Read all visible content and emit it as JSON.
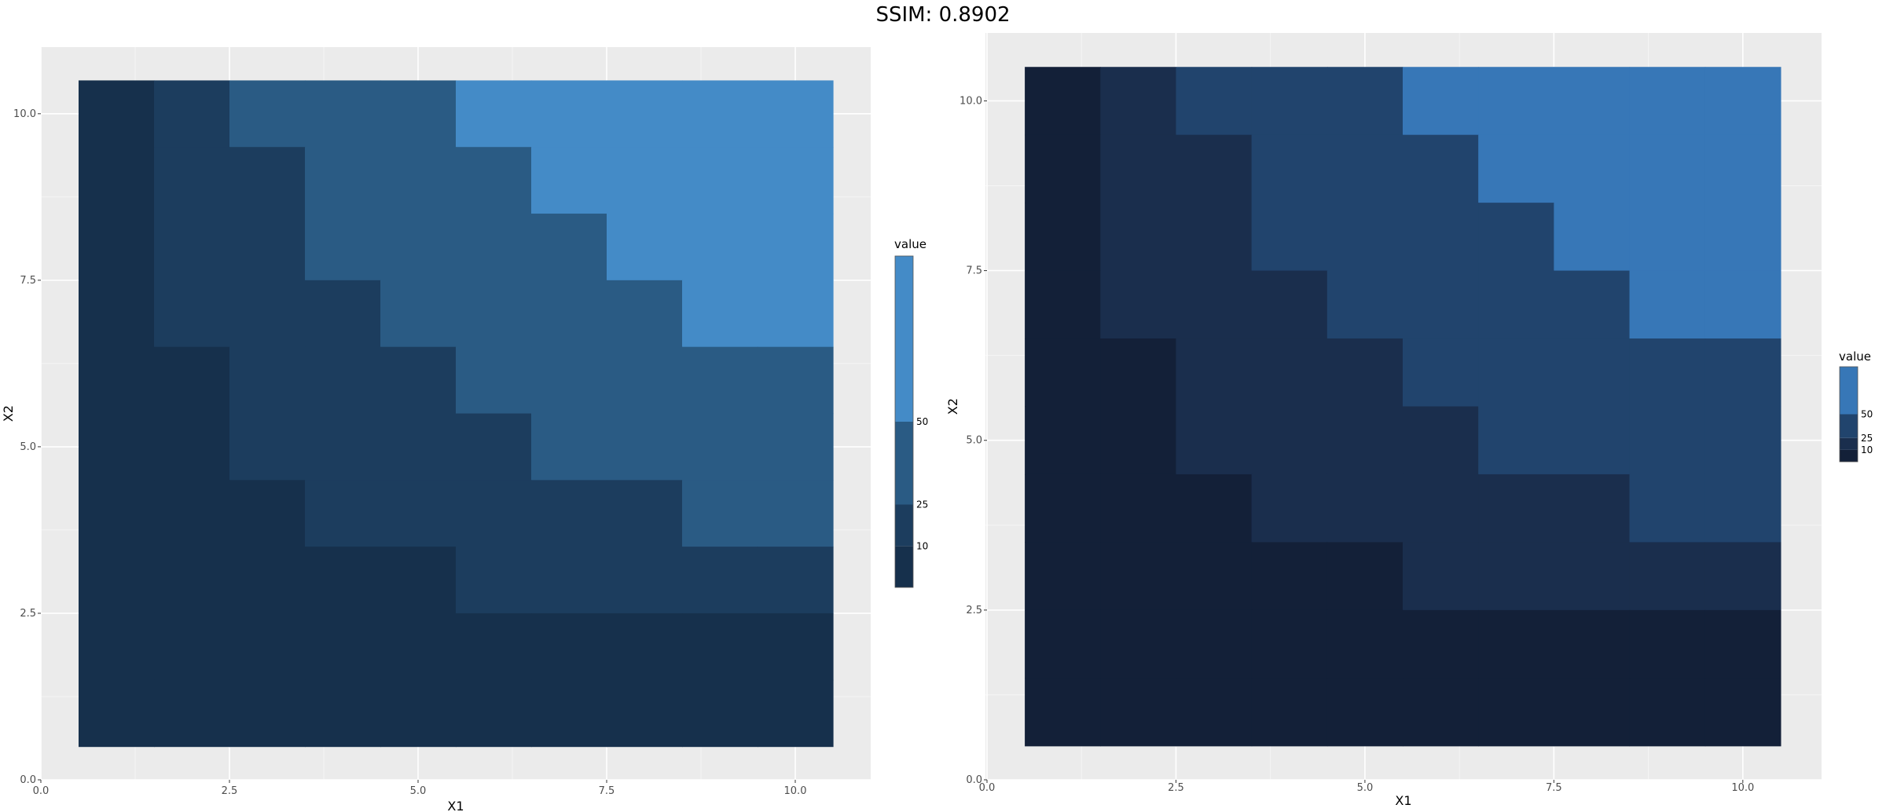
{
  "title": "SSIM: 0.8902",
  "chart_data": [
    {
      "type": "heatmap",
      "panel": "left",
      "xlabel": "X1",
      "ylabel": "X2",
      "xlim": [
        0,
        11
      ],
      "ylim": [
        0,
        11
      ],
      "x_ticks": [
        "0.0",
        "2.5",
        "5.0",
        "7.5",
        "10.0"
      ],
      "y_ticks": [
        "0.0",
        "2.5",
        "5.0",
        "7.5",
        "10.0"
      ],
      "grid": true,
      "legend_title": "value",
      "legend_position": "right",
      "legend_breaks": [
        "10",
        "25",
        "50"
      ],
      "colors": [
        "#16304c",
        "#1c3d5e",
        "#2a5b84",
        "#448bc7"
      ],
      "rows_top_to_bottom": [
        [
          0,
          1,
          2,
          2,
          2,
          3,
          3,
          3,
          3,
          3
        ],
        [
          0,
          1,
          1,
          2,
          2,
          2,
          3,
          3,
          3,
          3
        ],
        [
          0,
          1,
          1,
          2,
          2,
          2,
          2,
          3,
          3,
          3
        ],
        [
          0,
          1,
          1,
          1,
          2,
          2,
          2,
          2,
          3,
          3
        ],
        [
          0,
          0,
          1,
          1,
          1,
          2,
          2,
          2,
          2,
          2
        ],
        [
          0,
          0,
          1,
          1,
          1,
          1,
          2,
          2,
          2,
          2
        ],
        [
          0,
          0,
          0,
          1,
          1,
          1,
          1,
          1,
          2,
          2
        ],
        [
          0,
          0,
          0,
          0,
          0,
          1,
          1,
          1,
          1,
          1
        ],
        [
          0,
          0,
          0,
          0,
          0,
          0,
          0,
          0,
          0,
          0
        ],
        [
          0,
          0,
          0,
          0,
          0,
          0,
          0,
          0,
          0,
          0
        ]
      ]
    },
    {
      "type": "heatmap",
      "panel": "right",
      "xlabel": "X1",
      "ylabel": "X2",
      "xlim": [
        0,
        11
      ],
      "ylim": [
        0,
        11
      ],
      "x_ticks": [
        "0.0",
        "2.5",
        "5.0",
        "7.5",
        "10.0"
      ],
      "y_ticks": [
        "0.0",
        "2.5",
        "5.0",
        "7.5",
        "10.0"
      ],
      "grid": true,
      "legend_title": "value",
      "legend_position": "right",
      "legend_breaks": [
        "10",
        "25",
        "50"
      ],
      "colors": [
        "#132038",
        "#1a2e4d",
        "#21446d",
        "#3777b7"
      ],
      "rows_top_to_bottom": [
        [
          0,
          1,
          2,
          2,
          2,
          3,
          3,
          3,
          3,
          3
        ],
        [
          0,
          1,
          1,
          2,
          2,
          2,
          3,
          3,
          3,
          3
        ],
        [
          0,
          1,
          1,
          2,
          2,
          2,
          2,
          3,
          3,
          3
        ],
        [
          0,
          1,
          1,
          1,
          2,
          2,
          2,
          2,
          3,
          3
        ],
        [
          0,
          0,
          1,
          1,
          1,
          2,
          2,
          2,
          2,
          2
        ],
        [
          0,
          0,
          1,
          1,
          1,
          1,
          2,
          2,
          2,
          2
        ],
        [
          0,
          0,
          0,
          1,
          1,
          1,
          1,
          1,
          2,
          2
        ],
        [
          0,
          0,
          0,
          0,
          0,
          1,
          1,
          1,
          1,
          1
        ],
        [
          0,
          0,
          0,
          0,
          0,
          0,
          0,
          0,
          0,
          0
        ],
        [
          0,
          0,
          0,
          0,
          0,
          0,
          0,
          0,
          0,
          0
        ]
      ]
    }
  ]
}
